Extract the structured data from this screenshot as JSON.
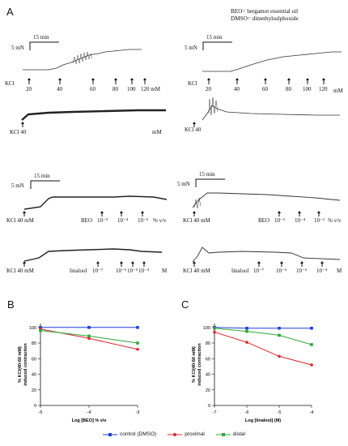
{
  "panel_labels": {
    "a": "A",
    "b": "B",
    "c": "C"
  },
  "abbrev": {
    "beo": "BEO= bergamot essential oil",
    "dmso": "DMSO= dimethylsulphoxide"
  },
  "traces": {
    "scale_time": "15 min",
    "scale_force": "5 mN",
    "t1": {
      "kcl": "KCl",
      "doses": [
        "20",
        "40",
        "60",
        "80",
        "100",
        "120 mM"
      ]
    },
    "t2": {
      "kcl": "KCl",
      "doses": [
        "20",
        "40",
        "60",
        "80",
        "100",
        "120"
      ],
      "unit": "mM"
    },
    "t3": {
      "kcl": "KCl 40",
      "unit": "mM"
    },
    "t4": {
      "kcl": "KCl 40"
    },
    "t5": {
      "kcl": "KCl 40  mM",
      "agent": "BEO",
      "doses": [
        "10⁻³",
        "10⁻⁴",
        "10⁻³"
      ],
      "unit": "% v/v"
    },
    "t6": {
      "kcl": "KCl 40   mM",
      "agent": "BEO",
      "doses": [
        "10⁻³",
        "10⁻⁴",
        "10⁻³"
      ],
      "unit": "% v/v"
    },
    "t7": {
      "kcl": "KCl 40  mM",
      "agent": "linalool",
      "doses": [
        "10⁻⁷",
        "10⁻⁶",
        "10⁻⁵",
        "10⁻⁴"
      ],
      "unit": "M"
    },
    "t8": {
      "kcl": "KCl 40  mM",
      "agent": "linalool",
      "doses": [
        "10⁻⁷",
        "10⁻⁶",
        "10⁻⁵",
        "10⁻⁴"
      ],
      "unit": "M"
    }
  },
  "colors": {
    "control": "#1f3fd6",
    "proximal": "#e0262b",
    "distal": "#2fa83a"
  },
  "legend": {
    "control": "control (DMSO)",
    "proximal": "proximal",
    "distal": "distal"
  },
  "chart_data": [
    {
      "type": "line",
      "panel": "B",
      "xlabel": "Log [BEO] % v/v",
      "ylabel": "% KCl(40-60 mM)\ninduced contraction",
      "xlim": [
        -5,
        -3
      ],
      "ylim": [
        0,
        105
      ],
      "xticks": [
        "-5",
        "-4",
        "-3"
      ],
      "yticks": [
        "0",
        "20",
        "40",
        "60",
        "80",
        "100"
      ],
      "x": [
        -5,
        -4,
        -3
      ],
      "series": [
        {
          "name": "control (DMSO)",
          "values": [
            100,
            100,
            100
          ]
        },
        {
          "name": "proximal",
          "values": [
            98,
            86,
            72
          ]
        },
        {
          "name": "distal",
          "values": [
            96,
            89,
            80
          ]
        }
      ]
    },
    {
      "type": "line",
      "panel": "C",
      "xlabel": "Log [linalool] (M)",
      "ylabel": "% KCl(40-60 mM)\ninduced contraction",
      "xlim": [
        -7,
        -4
      ],
      "ylim": [
        0,
        105
      ],
      "xticks": [
        "-7",
        "-6",
        "-5",
        "-4"
      ],
      "yticks": [
        "0",
        "20",
        "40",
        "60",
        "80",
        "100"
      ],
      "x": [
        -7,
        -6,
        -5,
        -4
      ],
      "series": [
        {
          "name": "control (DMSO)",
          "values": [
            100,
            99,
            99,
            99
          ]
        },
        {
          "name": "proximal",
          "values": [
            94,
            81,
            63,
            52
          ]
        },
        {
          "name": "distal",
          "values": [
            99,
            95,
            90,
            78
          ]
        }
      ]
    }
  ]
}
